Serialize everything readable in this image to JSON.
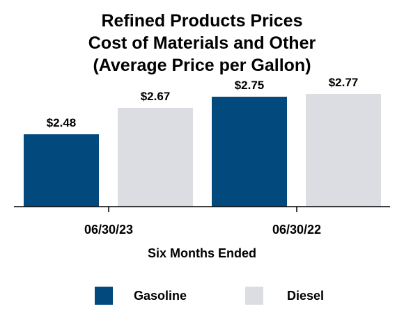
{
  "chart_data": {
    "type": "bar",
    "title_lines": [
      "Refined Products Prices",
      "Cost of Materials and Other",
      "(Average Price per Gallon)"
    ],
    "xlabel": "Six Months Ended",
    "ylabel": "",
    "categories": [
      "06/30/23",
      "06/30/22"
    ],
    "series": [
      {
        "name": "Gasoline",
        "color": "#024a7e",
        "values": [
          2.48,
          2.75
        ],
        "labels": [
          "$2.48",
          "$2.75"
        ]
      },
      {
        "name": "Diesel",
        "color": "#dcdde3",
        "values": [
          2.67,
          2.77
        ],
        "labels": [
          "$2.67",
          "$2.77"
        ]
      }
    ],
    "grid": false,
    "legend_position": "bottom"
  }
}
